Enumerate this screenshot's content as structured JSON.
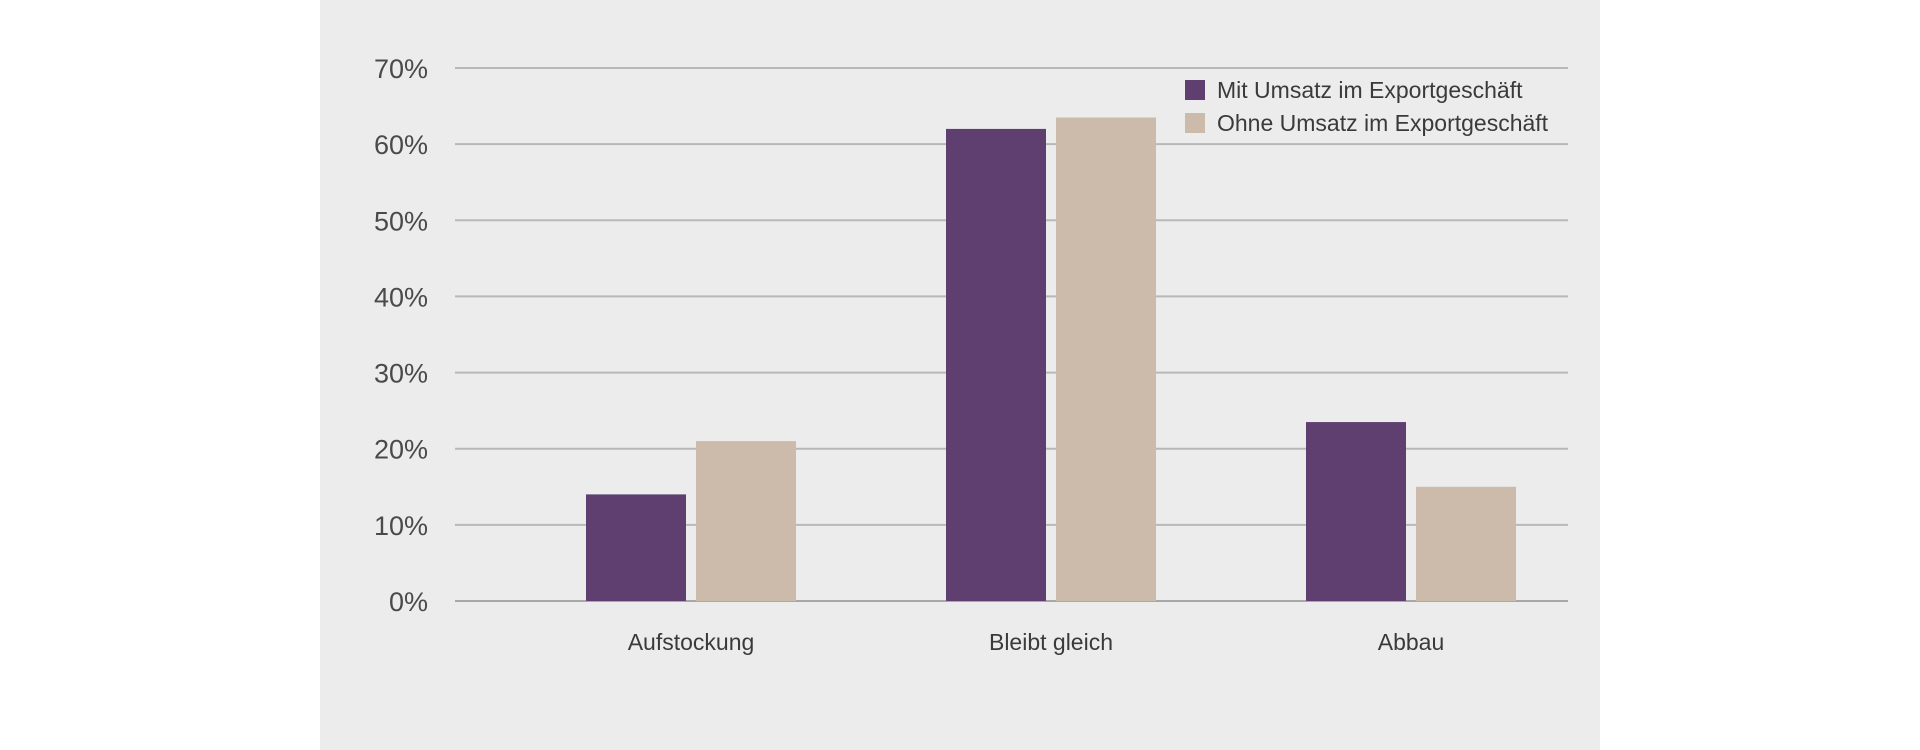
{
  "chart_data": {
    "type": "bar",
    "categories": [
      "Aufstockung",
      "Bleibt gleich",
      "Abbau"
    ],
    "series": [
      {
        "name": "Mit Umsatz im Exportgeschäft",
        "values": [
          14,
          62,
          23.5
        ],
        "color": "#5f3f70"
      },
      {
        "name": "Ohne Umsatz im Exportgeschäft",
        "values": [
          21,
          63.5,
          15
        ],
        "color": "#ccbbaa"
      }
    ],
    "y_ticks": [
      "0%",
      "10%",
      "20%",
      "30%",
      "40%",
      "50%",
      "60%",
      "70%"
    ],
    "ylim": [
      0,
      70
    ],
    "grid": true,
    "legend_position": "top-right",
    "title": "",
    "xlabel": "",
    "ylabel": ""
  },
  "colors": {
    "panel_background": "#ececec",
    "gridline": "#b8b8b8"
  }
}
